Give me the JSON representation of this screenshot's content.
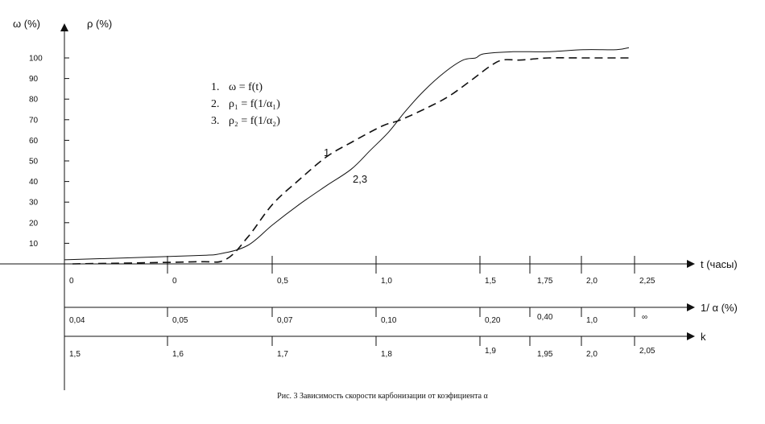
{
  "chart_data": {
    "type": "line",
    "title": "",
    "caption": "Рис. 3 Зависимость скорости карбонизации от коэфициента α",
    "y_axis": {
      "label_primary": "ω (%)",
      "label_secondary": "ρ (%)",
      "ticks": [
        "10",
        "20",
        "30",
        "40",
        "50",
        "60",
        "70",
        "80",
        "90",
        "100"
      ],
      "range": [
        0,
        100
      ]
    },
    "x_axes": [
      {
        "label": "t (часы)",
        "tick_labels": [
          "0",
          "0",
          "0,5",
          "1,0",
          "1,5",
          "1,75",
          "2,0",
          "2,25"
        ]
      },
      {
        "label": "1/ α (%)",
        "tick_labels": [
          "0,04",
          "0,05",
          "0,07",
          "0,10",
          "0,20",
          "0,40",
          "1,0",
          "∞"
        ]
      },
      {
        "label": "k",
        "tick_labels": [
          "1,5",
          "1,6",
          "1,7",
          "1,8",
          "1,9",
          "1,95",
          "2,0",
          "2,05"
        ]
      }
    ],
    "legend": {
      "placement": "top-left",
      "items": [
        {
          "num": "1.",
          "text": "ω = f(t)"
        },
        {
          "num": "2.",
          "text": "ρ₁ = f(1/α₁)"
        },
        {
          "num": "3.",
          "text": "ρ₂ = f(1/α₂)"
        }
      ]
    },
    "curve_labels": [
      "1",
      "2,3"
    ],
    "series": [
      {
        "style": "solid",
        "x_t": [
          0,
          0.12,
          0.25,
          0.38,
          0.5,
          0.63,
          0.76,
          0.88,
          0.97,
          1.06,
          1.14,
          1.23,
          1.33,
          1.42,
          1.48,
          1.52,
          1.66,
          1.83,
          2.0,
          2.16,
          2.22
        ],
        "values": [
          2,
          4,
          5,
          9,
          19,
          29,
          38,
          46,
          55,
          64,
          74,
          84,
          93,
          99,
          100,
          102,
          103,
          103,
          104,
          104,
          105
        ]
      },
      {
        "style": "dashed",
        "x_t": [
          -0.02,
          0.12,
          0.27,
          0.38,
          0.5,
          0.63,
          0.76,
          0.88,
          1.03,
          1.12,
          1.27,
          1.36,
          1.47,
          1.55,
          1.61,
          1.7,
          1.83,
          2.0,
          2.22
        ],
        "values": [
          0,
          1,
          2,
          13,
          29,
          41,
          52,
          59,
          67,
          70,
          77,
          82,
          90,
          96,
          99,
          99,
          100,
          100,
          100
        ]
      }
    ]
  }
}
